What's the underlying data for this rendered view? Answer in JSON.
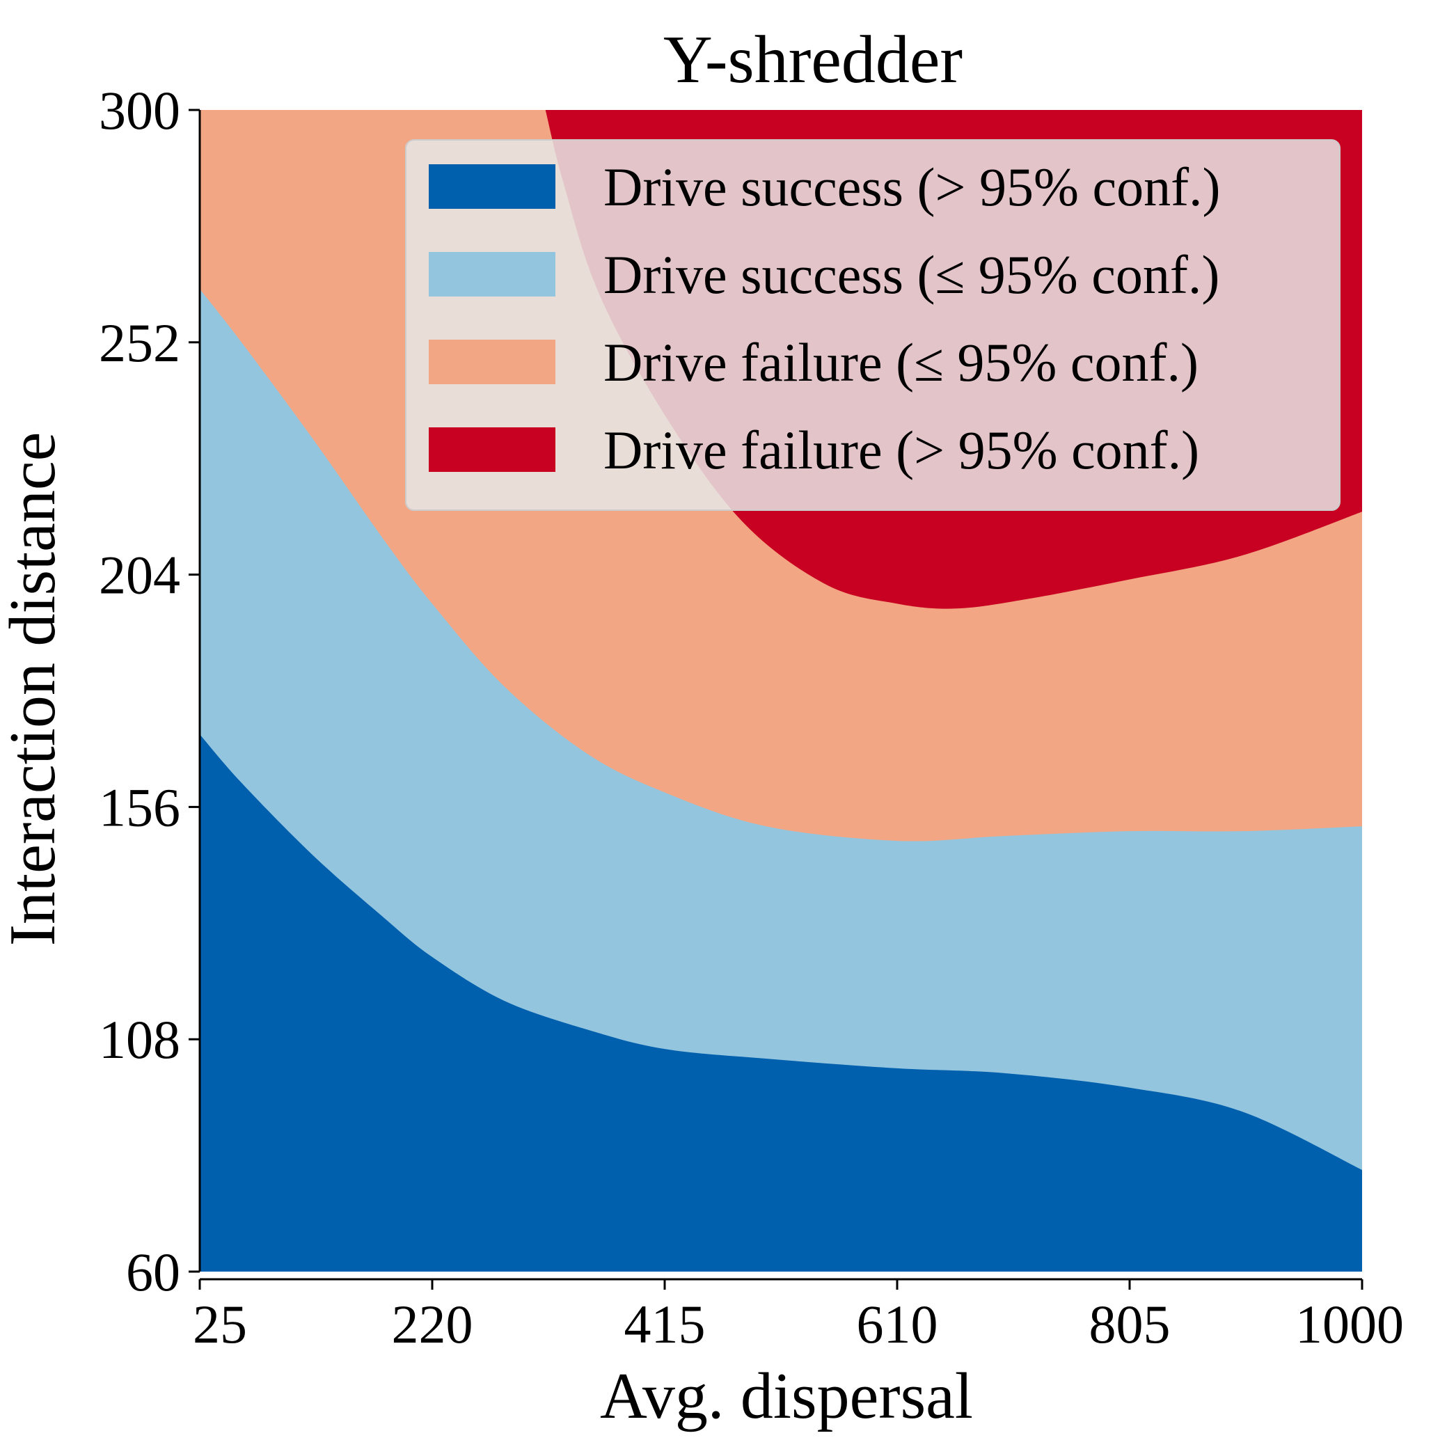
{
  "chart_data": {
    "type": "area",
    "title": "Y-shredder",
    "xlabel": "Avg. dispersal",
    "ylabel": "Interaction distance",
    "xlim": [
      25,
      1000
    ],
    "ylim": [
      60,
      300
    ],
    "x_ticks": [
      "25",
      "220",
      "415",
      "610",
      "805",
      "1000"
    ],
    "y_ticks": [
      "60",
      "108",
      "156",
      "204",
      "252",
      "300"
    ],
    "grid": false,
    "legend_position": "top-right",
    "legend": [
      {
        "label": "Drive success (> 95% conf.)",
        "color": "#0060ae"
      },
      {
        "label": "Drive success (≤ 95% conf.)",
        "color": "#94c5de"
      },
      {
        "label": "Drive failure (≤ 95% conf.)",
        "color": "#f3a683"
      },
      {
        "label": "Drive failure (> 95% conf.)",
        "color": "#c80021"
      }
    ],
    "boundaries": [
      {
        "name": "Drive success (> 95% conf.) upper bound",
        "x": [
          25,
          60,
          120,
          180,
          220,
          280,
          350,
          415,
          500,
          610,
          700,
          805,
          900,
          1000
        ],
        "y": [
          171,
          161,
          146,
          133,
          125,
          116,
          110,
          106,
          104,
          102,
          101,
          98,
          93,
          81
        ]
      },
      {
        "name": "Drive success (≤ 95% conf.) upper bound",
        "x": [
          25,
          60,
          120,
          180,
          220,
          280,
          350,
          415,
          500,
          610,
          700,
          805,
          900,
          1000
        ],
        "y": [
          263,
          252,
          232,
          211,
          198,
          181,
          167,
          159,
          152,
          149,
          150,
          151,
          151,
          152
        ]
      },
      {
        "name": "Drive failure (> 95% conf.) lower bound",
        "x": [
          315,
          330,
          360,
          415,
          480,
          550,
          610,
          660,
          720,
          805,
          900,
          1000
        ],
        "y": [
          300,
          285,
          262,
          237,
          215,
          202,
          198,
          197,
          199,
          203,
          208,
          217
        ]
      }
    ]
  }
}
